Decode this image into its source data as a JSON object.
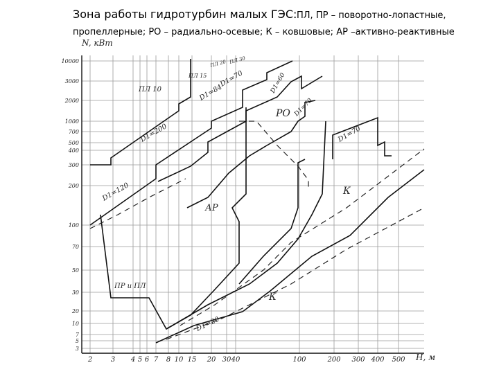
{
  "header": {
    "title": "Зона работы гидротурбин малых ГЭС:",
    "subtitle_line1": "ПЛ, ПР – поворотно-лопастные,",
    "subtitle_line2": "пропеллерные; РО – радиально-осевые; К – ковшовые; АР –активно-реактивные"
  },
  "diagram": {
    "y_axis_label": "N, кВт",
    "x_axis_label": "H, м",
    "y_tick_labels": [
      "10000",
      "3000",
      "2000",
      "1000",
      "700",
      "500",
      "400",
      "300",
      "200",
      "100",
      "70",
      "50",
      "30",
      "20",
      "10",
      "7",
      "5",
      "3"
    ],
    "x_tick_labels": [
      "2",
      "3",
      "4",
      "5",
      "6",
      "7",
      "8",
      "10",
      "15",
      "20",
      "30",
      "40",
      "100",
      "200",
      "300",
      "400",
      "500"
    ],
    "region_labels": [
      "ПЛ 10",
      "ПЛ 15",
      "ПЛ 20",
      "ПЛ 30",
      "D1=200",
      "D1=120",
      "D1=84",
      "D1=70",
      "D1=60",
      "D1=70",
      "D1=70",
      "РО",
      "АР",
      "К",
      "К",
      "ПР и ПЛ",
      "D1=20"
    ]
  }
}
